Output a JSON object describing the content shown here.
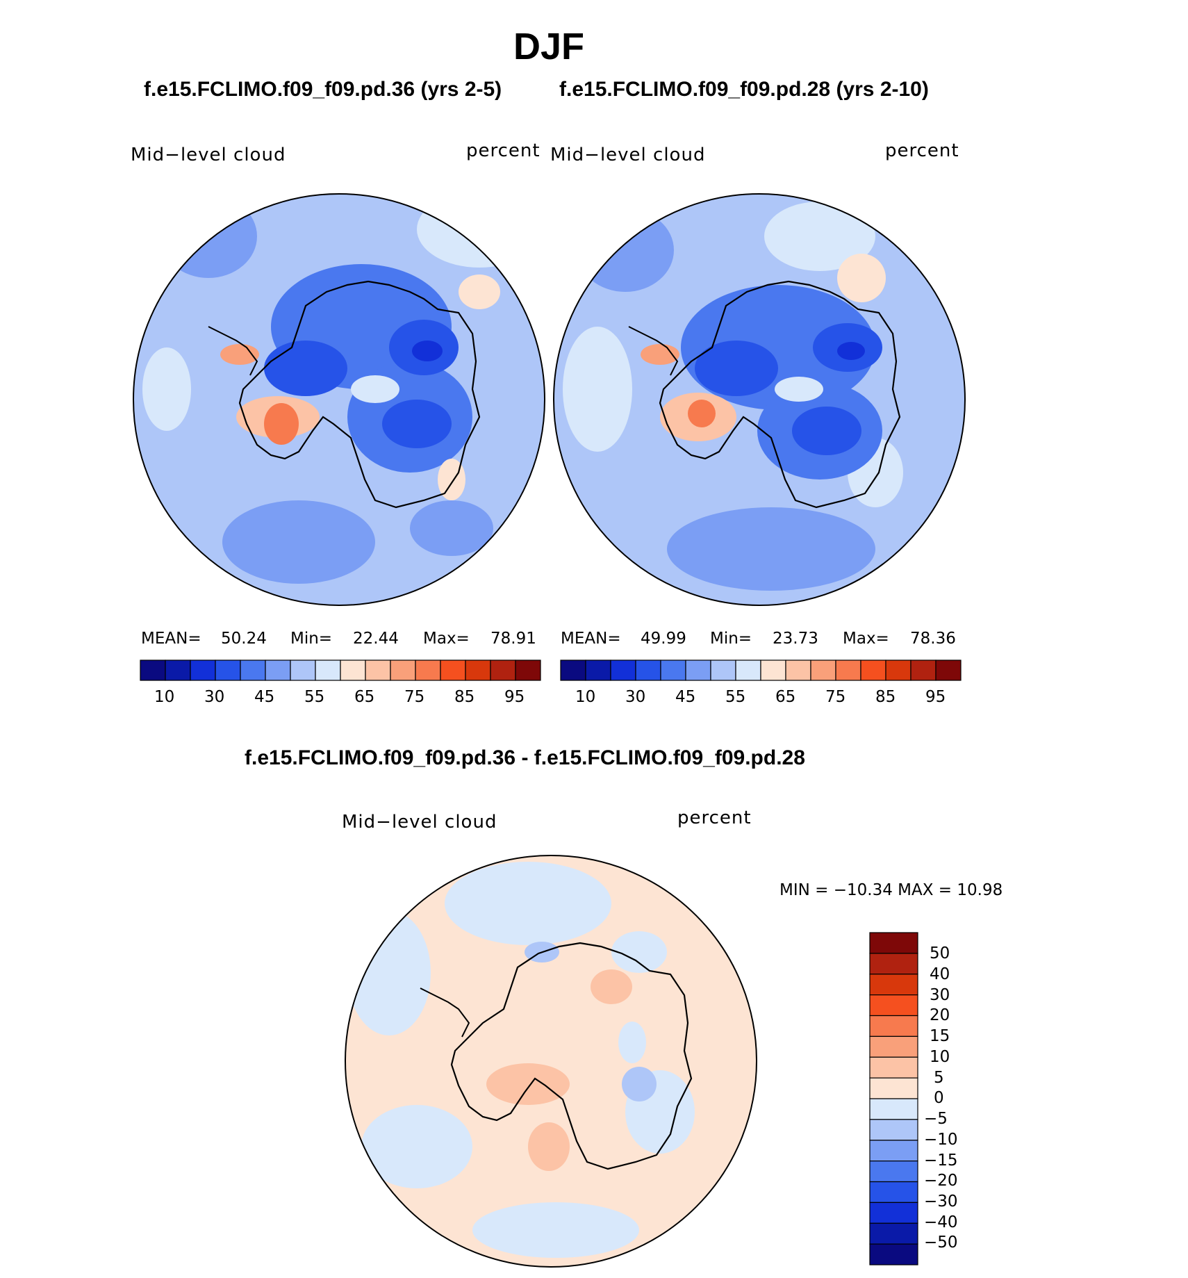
{
  "figure": {
    "season": "DJF",
    "case1_title": "f.e15.FCLIMO.f09_f09.pd.36 (yrs 2-5)",
    "case2_title": "f.e15.FCLIMO.f09_f09.pd.28 (yrs 2-10)",
    "diff_title": "f.e15.FCLIMO.f09_f09.pd.36 - f.e15.FCLIMO.f09_f09.pd.28"
  },
  "panels": {
    "left": {
      "variable": "Mid−level cloud",
      "units": "percent",
      "mean_label": "MEAN=",
      "mean": "50.24",
      "min_label": "Min=",
      "min": "22.44",
      "max_label": "Max=",
      "max": "78.91"
    },
    "right": {
      "variable": "Mid−level cloud",
      "units": "percent",
      "mean_label": "MEAN=",
      "mean": "49.99",
      "min_label": "Min=",
      "min": "23.73",
      "max_label": "Max=",
      "max": "78.36"
    },
    "diff": {
      "variable": "Mid−level cloud",
      "units": "percent",
      "minmax_text": "MIN = −10.34  MAX =   10.98"
    }
  },
  "colorbars": {
    "main": {
      "tick_labels": [
        "10",
        "30",
        "45",
        "55",
        "65",
        "75",
        "85",
        "95"
      ],
      "colors": [
        "#0a0a80",
        "#0a1aa8",
        "#1230d8",
        "#2653e8",
        "#4a78ef",
        "#7b9ef4",
        "#aec6f8",
        "#d8e8fb",
        "#fde4d3",
        "#fcc3a6",
        "#f9a07a",
        "#f77a4e",
        "#f5501f",
        "#d8380c",
        "#b02210",
        "#7e0808"
      ]
    },
    "diff": {
      "tick_labels": [
        "50",
        "40",
        "30",
        "20",
        "15",
        "10",
        "5",
        "0",
        "−5",
        "−10",
        "−15",
        "−20",
        "−30",
        "−40",
        "−50"
      ],
      "colors": [
        "#7e0808",
        "#b02210",
        "#d8380c",
        "#f5501f",
        "#f77a4e",
        "#f9a07a",
        "#fcc3a6",
        "#fde4d3",
        "#d8e8fb",
        "#aec6f8",
        "#7b9ef4",
        "#4a78ef",
        "#2653e8",
        "#1230d8",
        "#0a1aa8",
        "#0a0a80"
      ]
    }
  },
  "map_colors": {
    "ocean_main": "#aec6f8",
    "ocean_diff": "#fde4d3",
    "coast": "#000000"
  }
}
